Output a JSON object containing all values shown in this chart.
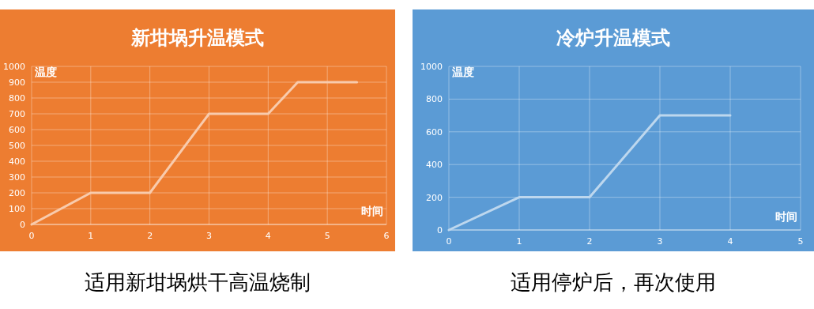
{
  "chart_data": [
    {
      "type": "line",
      "title": "新坩埚升温模式",
      "xlabel": "时间",
      "ylabel": "温度",
      "x": [
        0,
        1,
        2,
        3,
        4,
        4.5,
        5.5
      ],
      "series": [
        {
          "color": "#f8cbad",
          "values": [
            0,
            200,
            200,
            700,
            700,
            900,
            900
          ]
        }
      ],
      "xlim": [
        0,
        6
      ],
      "xticks": [
        0,
        1,
        2,
        3,
        4,
        5,
        6
      ],
      "ylim": [
        0,
        1000
      ],
      "yticks": [
        0,
        100,
        200,
        300,
        400,
        500,
        600,
        700,
        800,
        900,
        1000
      ],
      "grid": true,
      "annotations": [
        "适用新坩埚烘干高温烧制"
      ]
    },
    {
      "type": "line",
      "title": "冷炉升温模式",
      "xlabel": "时间",
      "ylabel": "温度",
      "x": [
        0,
        1,
        2,
        3,
        4
      ],
      "series": [
        {
          "color": "#bdd7ee",
          "values": [
            0,
            200,
            200,
            700,
            700
          ]
        }
      ],
      "xlim": [
        0,
        5
      ],
      "xticks": [
        0,
        1,
        2,
        3,
        4,
        5
      ],
      "ylim": [
        0,
        1000
      ],
      "yticks": [
        0,
        200,
        400,
        600,
        800,
        1000
      ],
      "grid": true,
      "annotations": [
        "适用停炉后，再次使用"
      ]
    }
  ]
}
